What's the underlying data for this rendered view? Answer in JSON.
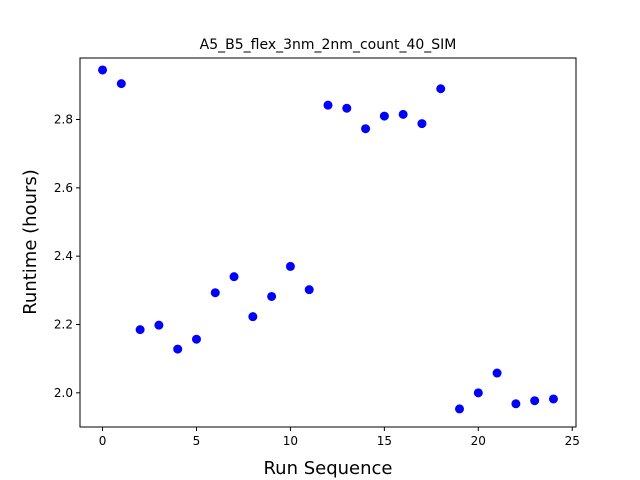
{
  "chart_data": {
    "type": "scatter",
    "title": "A5_B5_flex_3nm_2nm_count_40_SIM",
    "xlabel": "Run Sequence",
    "ylabel": "Runtime (hours)",
    "xlim": [
      -1.2,
      25.2
    ],
    "ylim": [
      1.9,
      2.98
    ],
    "xticks": [
      0,
      5,
      10,
      15,
      20,
      25
    ],
    "yticks": [
      2.0,
      2.2,
      2.4,
      2.6,
      2.8
    ],
    "xtick_labels": [
      "0",
      "5",
      "10",
      "15",
      "20",
      "25"
    ],
    "ytick_labels": [
      "2.0",
      "2.2",
      "2.4",
      "2.6",
      "2.8"
    ],
    "grid": false,
    "marker_color": "#0000ff",
    "series": [
      {
        "x": [
          0,
          1,
          2,
          3,
          4,
          5,
          6,
          7,
          8,
          9,
          10,
          11,
          12,
          13,
          14,
          15,
          16,
          17,
          18,
          19,
          20,
          21,
          22,
          23,
          24
        ],
        "y": [
          2.945,
          2.905,
          2.185,
          2.198,
          2.128,
          2.157,
          2.293,
          2.34,
          2.223,
          2.282,
          2.37,
          2.302,
          2.842,
          2.833,
          2.773,
          2.81,
          2.815,
          2.788,
          2.89,
          1.953,
          2.0,
          2.058,
          1.968,
          1.977,
          1.982
        ]
      }
    ]
  }
}
